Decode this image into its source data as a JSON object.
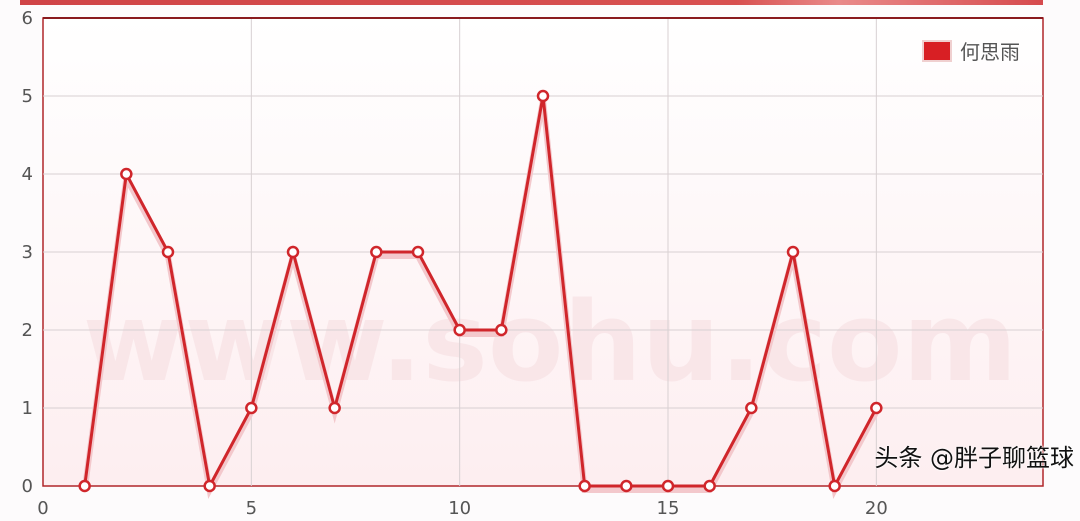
{
  "chart_data": {
    "type": "line",
    "title": "",
    "xlabel": "",
    "ylabel": "",
    "x": [
      1,
      2,
      3,
      4,
      5,
      6,
      7,
      8,
      9,
      10,
      11,
      12,
      13,
      14,
      15,
      16,
      17,
      18,
      19,
      20
    ],
    "series": [
      {
        "name": "何思雨",
        "values": [
          0,
          4,
          3,
          0,
          1,
          3,
          1,
          3,
          3,
          2,
          2,
          5,
          0,
          0,
          0,
          0,
          1,
          3,
          0,
          1
        ],
        "color": "#d0262b"
      }
    ],
    "xlim": [
      0,
      24
    ],
    "ylim": [
      0,
      6
    ],
    "xticks": [
      0,
      5,
      10,
      15,
      20
    ],
    "yticks": [
      0,
      1,
      2,
      3,
      4,
      5,
      6
    ],
    "grid": true,
    "legend": "top-right"
  },
  "watermarks": {
    "background": "www.sohu.com",
    "credit": "头条 @胖子聊篮球"
  }
}
